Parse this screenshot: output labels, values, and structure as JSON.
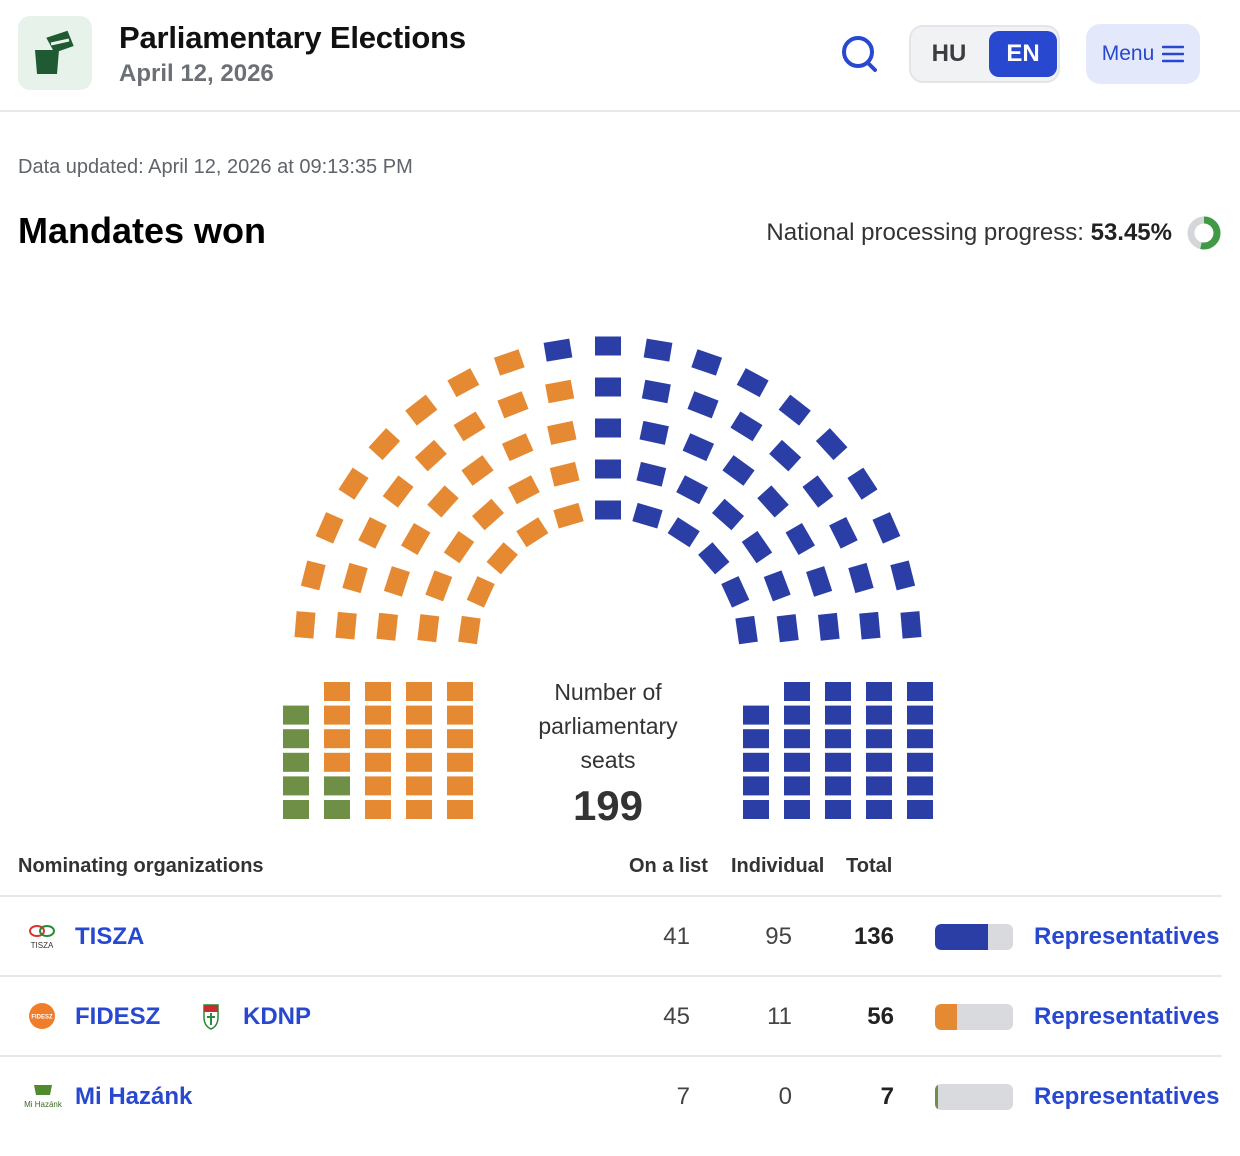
{
  "header": {
    "title": "Parliamentary Elections",
    "subtitle": "April 12, 2026",
    "lang_hu": "HU",
    "lang_en": "EN",
    "menu_label": "Menu"
  },
  "updated_text": "Data updated: April 12, 2026 at 09:13:35 PM",
  "section_title": "Mandates won",
  "progress": {
    "label": "National processing progress:",
    "value_text": "53.45%",
    "value": 53.45
  },
  "chart_data": {
    "type": "parliament",
    "center_label": "Number of parliamentary seats",
    "center_label_lines": [
      "Number of",
      "parliamentary",
      "seats"
    ],
    "total_seats": 199,
    "series": [
      {
        "name": "Mi Hazánk",
        "seats": 7,
        "color": "#6e8f45"
      },
      {
        "name": "FIDESZ - KDNP",
        "seats": 56,
        "color": "#e58a33"
      },
      {
        "name": "TISZA",
        "seats": 136,
        "color": "#2a3ea6"
      }
    ]
  },
  "table": {
    "headers": {
      "org": "Nominating organizations",
      "list": "On a list",
      "individual": "Individual",
      "total": "Total"
    },
    "rows": [
      {
        "name": "TISZA",
        "name2": "",
        "list": "41",
        "individual": "95",
        "total": "136",
        "share": 0.684,
        "color": "#2a3ea6",
        "link": "Representatives",
        "icon": "tisza-logo-icon",
        "icon_text": "TISZA"
      },
      {
        "name": "FIDESZ",
        "name2": "KDNP",
        "list": "45",
        "individual": "11",
        "total": "56",
        "share": 0.281,
        "color": "#e58a33",
        "link": "Representatives",
        "icon": "fidesz-logo-icon",
        "icon_text": "FIDESZ"
      },
      {
        "name": "Mi Hazánk",
        "name2": "",
        "list": "7",
        "individual": "0",
        "total": "7",
        "share": 0.035,
        "color": "#6e8f45",
        "link": "Representatives",
        "icon": "mihazank-logo-icon",
        "icon_text": "Mi Hazánk"
      }
    ]
  }
}
